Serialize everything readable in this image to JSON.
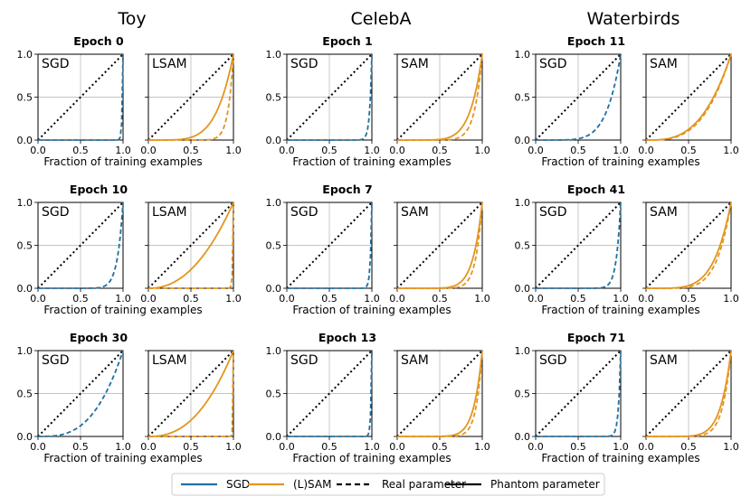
{
  "colors": {
    "sgd": "#1f6fa3",
    "sam": "#e3951f",
    "diag": "#000000",
    "grid": "#b0b0b0"
  },
  "legend": [
    "SGD",
    "(L)SAM",
    "Real parameter",
    "Phantom parameter"
  ],
  "chart_data": {
    "type": "line",
    "description_axes": {
      "xlabel": "Fraction of training examples",
      "xlim": [
        0,
        1
      ],
      "ylim": [
        0,
        1
      ],
      "xticks": [
        "0.0",
        "0.5",
        "1.0"
      ],
      "yticks": [
        "0.0",
        "0.5",
        "1.0"
      ]
    },
    "columns": [
      {
        "title": "Toy",
        "rows": [
          {
            "epoch": "Epoch 0",
            "left_label": "SGD",
            "right_label": "LSAM",
            "sgd_real_exp": 100,
            "sam_real_exp": 16,
            "sam_phantom_exp": 5
          },
          {
            "epoch": "Epoch 10",
            "left_label": "SGD",
            "right_label": "LSAM",
            "sgd_real_exp": 15,
            "sam_real_exp": 120,
            "sam_phantom_exp": 2.2
          },
          {
            "epoch": "Epoch 30",
            "left_label": "SGD",
            "right_label": "LSAM",
            "sgd_real_exp": 3,
            "sam_real_exp": 200,
            "sam_phantom_exp": 2.4
          }
        ]
      },
      {
        "title": "CelebA",
        "rows": [
          {
            "epoch": "Epoch 1",
            "left_label": "SGD",
            "right_label": "SAM",
            "sgd_real_exp": 40,
            "sam_real_exp": 11,
            "sam_phantom_exp": 7
          },
          {
            "epoch": "Epoch 7",
            "left_label": "SGD",
            "right_label": "SAM",
            "sgd_real_exp": 60,
            "sam_real_exp": 13,
            "sam_phantom_exp": 9
          },
          {
            "epoch": "Epoch 13",
            "left_label": "SGD",
            "right_label": "SAM",
            "sgd_real_exp": 90,
            "sam_real_exp": 14,
            "sam_phantom_exp": 10
          }
        ]
      },
      {
        "title": "Waterbirds",
        "rows": [
          {
            "epoch": "Epoch 11",
            "left_label": "SGD",
            "right_label": "SAM",
            "sgd_real_exp": 6,
            "sam_real_exp": 3.2,
            "sam_phantom_exp": 3.0
          },
          {
            "epoch": "Epoch 41",
            "left_label": "SGD",
            "right_label": "SAM",
            "sgd_real_exp": 20,
            "sam_real_exp": 6,
            "sam_phantom_exp": 5
          },
          {
            "epoch": "Epoch 71",
            "left_label": "SGD",
            "right_label": "SAM",
            "sgd_real_exp": 40,
            "sam_real_exp": 10,
            "sam_phantom_exp": 8
          }
        ]
      }
    ]
  }
}
